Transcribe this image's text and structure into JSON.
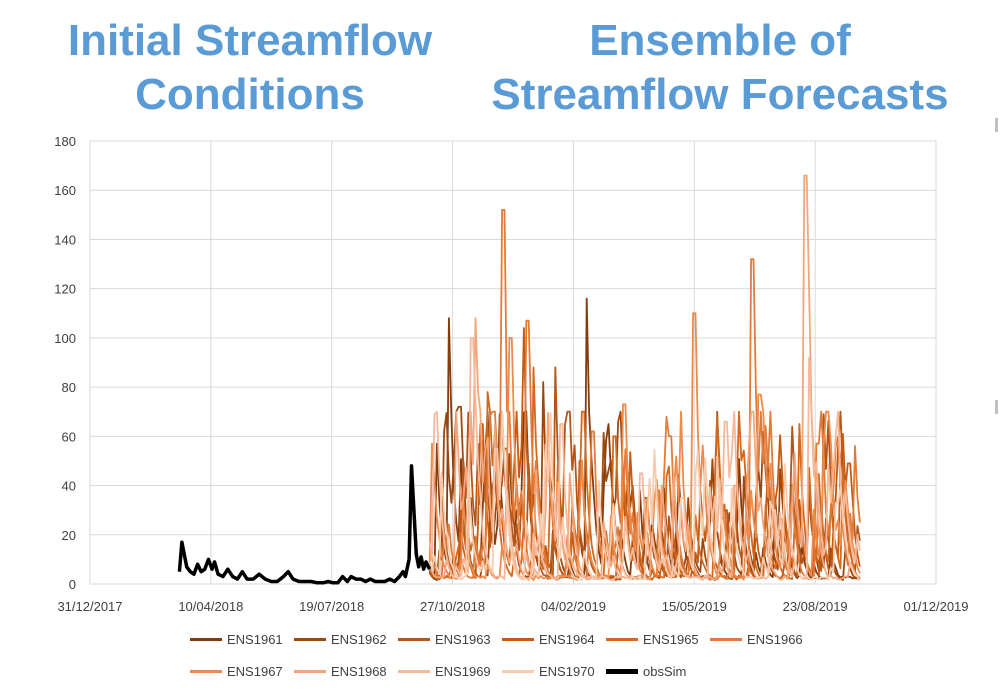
{
  "titles": {
    "left": "Initial Streamflow Conditions",
    "right": "Ensemble of Streamflow Forecasts"
  },
  "chart_data": {
    "type": "line",
    "title": "",
    "xlabel": "",
    "ylabel": "",
    "ylim": [
      0,
      180
    ],
    "yticks": [
      0,
      20,
      40,
      60,
      80,
      100,
      120,
      140,
      160,
      180
    ],
    "xlim": [
      "2017-12-31",
      "2019-12-01"
    ],
    "xtick_labels": [
      "31/12/2017",
      "10/04/2018",
      "19/07/2018",
      "27/10/2018",
      "04/02/2019",
      "15/05/2019",
      "23/08/2019",
      "01/12/2019"
    ],
    "grid": "vertical and horizontal gridlines",
    "legend_position": "bottom",
    "observed": {
      "name": "obsSim",
      "color": "#000000",
      "points": [
        [
          "2018-03-15",
          5
        ],
        [
          "2018-03-17",
          17
        ],
        [
          "2018-03-19",
          12
        ],
        [
          "2018-03-21",
          7
        ],
        [
          "2018-03-24",
          5
        ],
        [
          "2018-03-27",
          4
        ],
        [
          "2018-03-30",
          8
        ],
        [
          "2018-04-02",
          5
        ],
        [
          "2018-04-05",
          6
        ],
        [
          "2018-04-08",
          10
        ],
        [
          "2018-04-11",
          6
        ],
        [
          "2018-04-13",
          9
        ],
        [
          "2018-04-16",
          4
        ],
        [
          "2018-04-20",
          3
        ],
        [
          "2018-04-24",
          6
        ],
        [
          "2018-04-28",
          3
        ],
        [
          "2018-05-02",
          2
        ],
        [
          "2018-05-06",
          5
        ],
        [
          "2018-05-10",
          2
        ],
        [
          "2018-05-15",
          2
        ],
        [
          "2018-05-20",
          4
        ],
        [
          "2018-05-25",
          2
        ],
        [
          "2018-05-30",
          1
        ],
        [
          "2018-06-04",
          1
        ],
        [
          "2018-06-09",
          3
        ],
        [
          "2018-06-13",
          5
        ],
        [
          "2018-06-17",
          2
        ],
        [
          "2018-06-22",
          1
        ],
        [
          "2018-06-27",
          1
        ],
        [
          "2018-07-02",
          1
        ],
        [
          "2018-07-07",
          0.5
        ],
        [
          "2018-07-12",
          0.5
        ],
        [
          "2018-07-16",
          1
        ],
        [
          "2018-07-20",
          0.5
        ],
        [
          "2018-07-24",
          0.5
        ],
        [
          "2018-07-28",
          3
        ],
        [
          "2018-08-01",
          1
        ],
        [
          "2018-08-04",
          3
        ],
        [
          "2018-08-08",
          2
        ],
        [
          "2018-08-12",
          2
        ],
        [
          "2018-08-16",
          1
        ],
        [
          "2018-08-20",
          2
        ],
        [
          "2018-08-24",
          1
        ],
        [
          "2018-08-28",
          1
        ],
        [
          "2018-09-01",
          1
        ],
        [
          "2018-09-05",
          2
        ],
        [
          "2018-09-09",
          1
        ],
        [
          "2018-09-13",
          3
        ],
        [
          "2018-09-16",
          5
        ],
        [
          "2018-09-18",
          3
        ],
        [
          "2018-09-21",
          10
        ],
        [
          "2018-09-23",
          48
        ],
        [
          "2018-09-25",
          30
        ],
        [
          "2018-09-27",
          12
        ],
        [
          "2018-09-29",
          7
        ],
        [
          "2018-10-01",
          11
        ],
        [
          "2018-10-03",
          6
        ],
        [
          "2018-10-05",
          9
        ],
        [
          "2018-10-08",
          6
        ]
      ]
    },
    "forecast_window": [
      "2018-10-08",
      "2019-09-30"
    ],
    "ensemble": [
      {
        "name": "ENS1961",
        "color": "#843c0c",
        "peaks": [
          [
            "2018-10-14",
            57
          ],
          [
            "2018-10-24",
            108
          ],
          [
            "2018-11-10",
            35
          ],
          [
            "2018-12-20",
            30
          ],
          [
            "2019-02-15",
            116
          ],
          [
            "2019-04-10",
            25
          ]
        ]
      },
      {
        "name": "ENS1962",
        "color": "#9e480e",
        "peaks": [
          [
            "2018-10-20",
            62
          ],
          [
            "2018-11-02",
            72
          ],
          [
            "2019-01-10",
            82
          ],
          [
            "2019-03-25",
            40
          ],
          [
            "2019-05-28",
            25
          ],
          [
            "2019-07-05",
            35
          ]
        ]
      },
      {
        "name": "ENS1963",
        "color": "#b4561a",
        "peaks": [
          [
            "2018-11-05",
            50
          ],
          [
            "2018-12-10",
            55
          ],
          [
            "2019-01-20",
            88
          ],
          [
            "2019-04-05",
            35
          ],
          [
            "2019-06-10",
            30
          ],
          [
            "2019-08-30",
            69
          ]
        ]
      },
      {
        "name": "ENS1964",
        "color": "#c55a11",
        "peaks": [
          [
            "2018-11-20",
            65
          ],
          [
            "2018-12-25",
            104
          ],
          [
            "2019-02-10",
            50
          ],
          [
            "2019-05-20",
            38
          ],
          [
            "2019-07-15",
            48
          ],
          [
            "2019-09-20",
            49
          ]
        ]
      },
      {
        "name": "ENS1965",
        "color": "#d2691e",
        "peaks": [
          [
            "2018-11-25",
            78
          ],
          [
            "2019-01-02",
            88
          ],
          [
            "2019-03-10",
            60
          ],
          [
            "2019-06-01",
            32
          ],
          [
            "2019-08-10",
            65
          ],
          [
            "2019-09-15",
            48
          ]
        ]
      },
      {
        "name": "ENS1966",
        "color": "#e07b39",
        "peaks": [
          [
            "2018-12-08",
            152
          ],
          [
            "2018-12-28",
            107
          ],
          [
            "2019-02-20",
            62
          ],
          [
            "2019-04-25",
            60
          ],
          [
            "2019-07-02",
            132
          ],
          [
            "2019-08-25",
            57
          ]
        ]
      },
      {
        "name": "ENS1967",
        "color": "#ed8a4c",
        "peaks": [
          [
            "2018-10-10",
            57
          ],
          [
            "2018-12-14",
            100
          ],
          [
            "2019-03-18",
            73
          ],
          [
            "2019-05-15",
            110
          ],
          [
            "2019-07-08",
            77
          ],
          [
            "2019-09-05",
            57
          ]
        ]
      },
      {
        "name": "ENS1968",
        "color": "#f4a57a",
        "peaks": [
          [
            "2018-10-30",
            70
          ],
          [
            "2018-11-15",
            108
          ],
          [
            "2019-02-01",
            45
          ],
          [
            "2019-04-18",
            40
          ],
          [
            "2019-06-18",
            40
          ],
          [
            "2019-08-15",
            166
          ]
        ]
      },
      {
        "name": "ENS1969",
        "color": "#f5b899",
        "peaks": [
          [
            "2018-10-12",
            69
          ],
          [
            "2018-11-12",
            100
          ],
          [
            "2019-01-25",
            65
          ],
          [
            "2019-04-01",
            45
          ],
          [
            "2019-06-10",
            66
          ],
          [
            "2019-08-18",
            92
          ]
        ]
      },
      {
        "name": "ENS1970",
        "color": "#f8cbad",
        "peaks": [
          [
            "2018-10-18",
            45
          ],
          [
            "2018-12-02",
            55
          ],
          [
            "2019-02-25",
            42
          ],
          [
            "2019-05-05",
            35
          ],
          [
            "2019-07-20",
            30
          ],
          [
            "2019-09-10",
            33
          ]
        ]
      }
    ]
  },
  "legend": [
    {
      "label": "ENS1961",
      "color": "#843c0c"
    },
    {
      "label": "ENS1962",
      "color": "#9e480e"
    },
    {
      "label": "ENS1963",
      "color": "#b4561a"
    },
    {
      "label": "ENS1964",
      "color": "#c55a11"
    },
    {
      "label": "ENS1965",
      "color": "#d2691e"
    },
    {
      "label": "ENS1966",
      "color": "#e07b39"
    },
    {
      "label": "ENS1967",
      "color": "#ed8a4c"
    },
    {
      "label": "ENS1968",
      "color": "#f4a57a"
    },
    {
      "label": "ENS1969",
      "color": "#f5b899"
    },
    {
      "label": "ENS1970",
      "color": "#f8cbad"
    },
    {
      "label": "obsSim",
      "color": "#000000"
    }
  ]
}
